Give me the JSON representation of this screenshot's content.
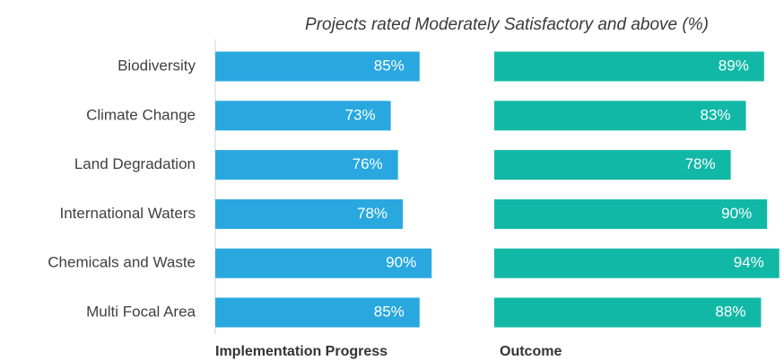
{
  "chart_data": {
    "type": "bar",
    "orientation": "horizontal",
    "title": "Projects rated Moderately Satisfactory and above (%)",
    "categories": [
      "Biodiversity",
      "Climate Change",
      "Land Degradation",
      "International Waters",
      "Chemicals and Waste",
      "Multi Focal Area"
    ],
    "xlim": [
      0,
      100
    ],
    "series": [
      {
        "name": "Implementation Progress",
        "color": "#29a8e0",
        "values": [
          85,
          73,
          76,
          78,
          90,
          85
        ],
        "value_labels": [
          "85%",
          "73%",
          "76%",
          "78%",
          "90%",
          "85%"
        ]
      },
      {
        "name": "Outcome",
        "color": "#12b8a6",
        "values": [
          89,
          83,
          78,
          90,
          94,
          88
        ],
        "value_labels": [
          "89%",
          "83%",
          "78%",
          "90%",
          "94%",
          "88%"
        ]
      }
    ]
  }
}
